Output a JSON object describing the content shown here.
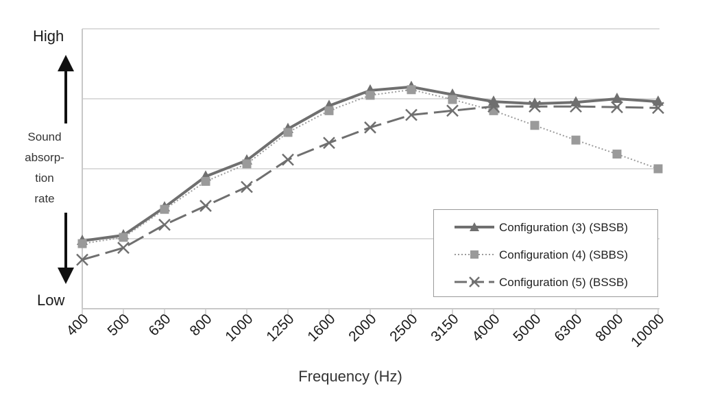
{
  "chart_data": {
    "type": "line",
    "categories": [
      "400",
      "500",
      "630",
      "800",
      "1000",
      "1250",
      "1600",
      "2000",
      "2500",
      "3150",
      "4000",
      "5000",
      "6300",
      "8000",
      "10000"
    ],
    "xlabel": "Frequency (Hz)",
    "y_top_label": "High",
    "y_bottom_label": "Low",
    "y_desc_lines": [
      "Sound",
      "absorp-",
      "tion",
      "rate"
    ],
    "ylim": [
      0,
      4
    ],
    "grid": "horizontal",
    "legend_position": "bottom-right",
    "series": [
      {
        "name": "Configuration (3) (SBSB)",
        "style": "solid",
        "marker": "triangle",
        "color": "#6f6f6f",
        "values": [
          0.97,
          1.05,
          1.45,
          1.89,
          2.12,
          2.57,
          2.9,
          3.12,
          3.17,
          3.06,
          2.96,
          2.93,
          2.95,
          3.0,
          2.96
        ]
      },
      {
        "name": "Configuration (4) (SBBS)",
        "style": "dotted",
        "marker": "square",
        "color": "#9a9a9a",
        "values": [
          0.93,
          1.02,
          1.42,
          1.82,
          2.07,
          2.52,
          2.83,
          3.05,
          3.13,
          2.99,
          2.83,
          2.62,
          2.41,
          2.21,
          2.0
        ]
      },
      {
        "name": "Configuration (5) (BSSB)",
        "style": "dashed",
        "marker": "x",
        "color": "#6f6f6f",
        "values": [
          0.7,
          0.87,
          1.2,
          1.47,
          1.74,
          2.13,
          2.37,
          2.59,
          2.77,
          2.83,
          2.89,
          2.89,
          2.89,
          2.88,
          2.87
        ]
      }
    ]
  }
}
